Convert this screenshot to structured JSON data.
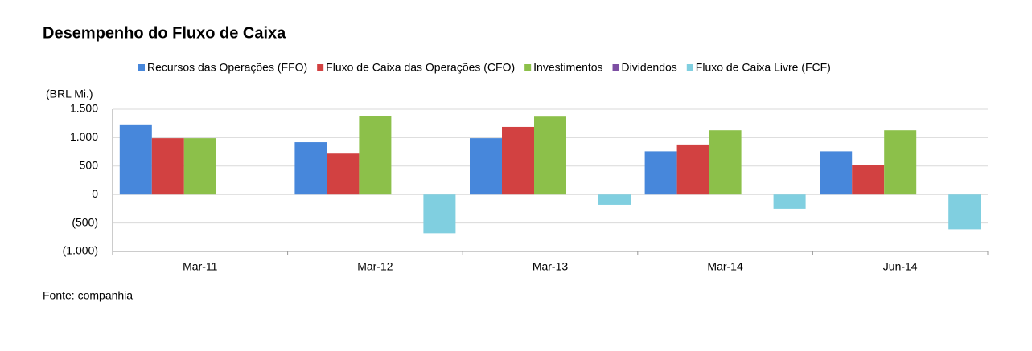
{
  "chart_data": {
    "type": "bar",
    "title": "Desempenho do Fluxo de Caixa",
    "y_axis_label": "(BRL Mi.)",
    "source": "Fonte: companhia",
    "categories": [
      "Mar-11",
      "Mar-12",
      "Mar-13",
      "Mar-14",
      "Jun-14"
    ],
    "series": [
      {
        "name": "Recursos das Operações (FFO)",
        "color": "#4787db",
        "values": [
          1220,
          920,
          990,
          760,
          760
        ]
      },
      {
        "name": "Fluxo de Caixa das Operações (CFO)",
        "color": "#d24141",
        "values": [
          990,
          720,
          1190,
          880,
          520
        ]
      },
      {
        "name": "Investimentos",
        "color": "#8cc04a",
        "values": [
          990,
          1380,
          1370,
          1130,
          1130
        ]
      },
      {
        "name": "Dividendos",
        "color": "#7d4fa3",
        "values": [
          0,
          0,
          0,
          0,
          0
        ]
      },
      {
        "name": "Fluxo de Caixa Livre (FCF)",
        "color": "#80cfe0",
        "values": [
          0,
          -680,
          -180,
          -250,
          -610
        ]
      }
    ],
    "ylim": [
      -1000,
      1500
    ],
    "yticks": [
      {
        "value": 1500,
        "label": "1.500"
      },
      {
        "value": 1000,
        "label": "1.000"
      },
      500,
      0,
      {
        "value": -500,
        "label": "(500)"
      },
      {
        "value": -1000,
        "label": "(1.000)"
      }
    ],
    "grid": true
  }
}
